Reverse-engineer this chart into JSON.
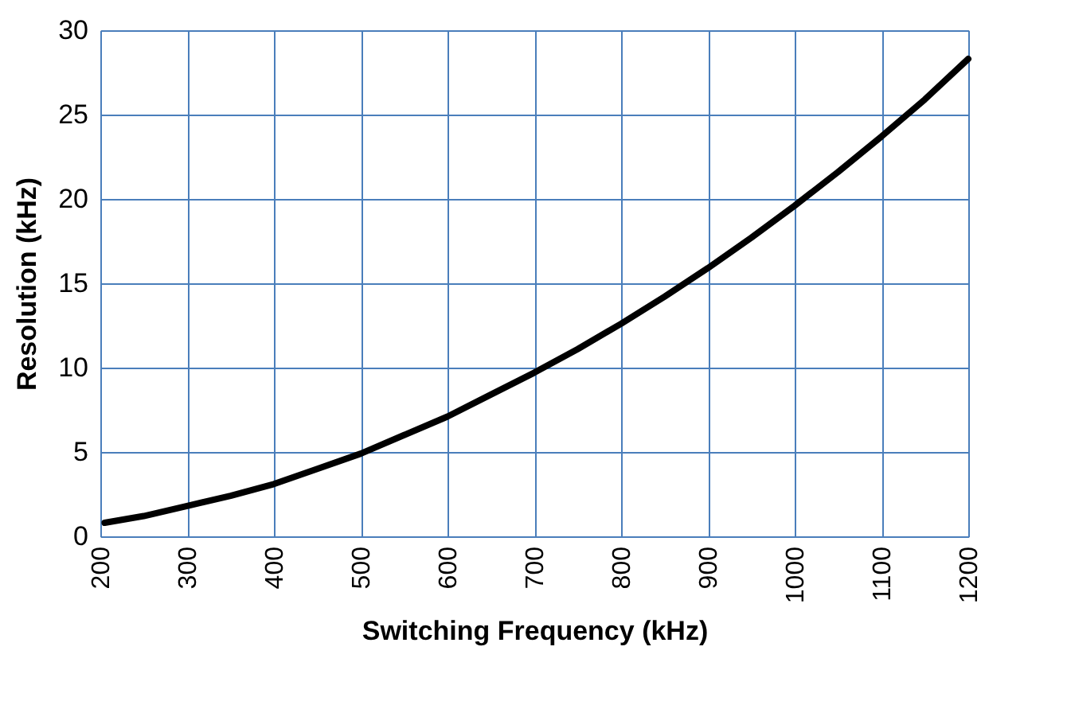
{
  "chart_data": {
    "type": "line",
    "xlabel": "Switching Frequency (kHz)",
    "ylabel": "Resolution (kHz)",
    "x": [
      205,
      250,
      300,
      350,
      400,
      450,
      500,
      550,
      600,
      650,
      700,
      750,
      800,
      850,
      900,
      950,
      1000,
      1050,
      1100,
      1150,
      1200
    ],
    "series": [
      {
        "color": "#000000",
        "values": [
          0.8,
          1.2,
          1.8,
          2.4,
          3.1,
          4.0,
          4.9,
          6.0,
          7.1,
          8.4,
          9.7,
          11.1,
          12.6,
          14.2,
          15.9,
          17.7,
          19.6,
          21.6,
          23.7,
          25.9,
          28.3
        ]
      }
    ],
    "xlim": [
      200,
      1200
    ],
    "xticks": [
      200,
      300,
      400,
      500,
      600,
      700,
      800,
      900,
      1000,
      1100,
      1200
    ],
    "ylim": [
      0,
      30
    ],
    "yticks": [
      0,
      5,
      10,
      15,
      20,
      25,
      30
    ],
    "grid": true,
    "marker": "none",
    "line_style": "solid"
  }
}
